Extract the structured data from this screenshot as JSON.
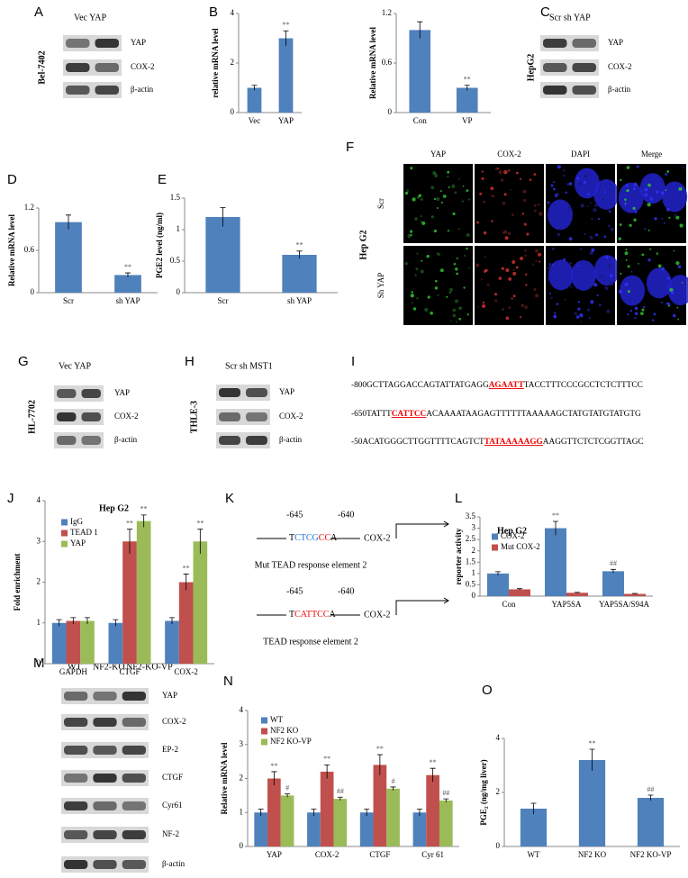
{
  "panel_letters": [
    "A",
    "B",
    "C",
    "D",
    "E",
    "F",
    "G",
    "H",
    "I",
    "J",
    "K",
    "L",
    "M",
    "N",
    "O"
  ],
  "blots": [
    {
      "header": [
        "Vec YAP"
      ],
      "labels": [
        "YAP",
        "COX-2",
        "β-actin"
      ],
      "cell_line": "Bel-7402"
    },
    {
      "header": [
        "Scr sh YAP"
      ],
      "labels": [
        "YAP",
        "COX-2",
        "β-actin"
      ],
      "cell_line": "HepG2"
    },
    {
      "header": [
        "Vec YAP"
      ],
      "labels": [
        "YAP",
        "COX-2",
        "β-actin"
      ],
      "cell_line": "HL-7702"
    },
    {
      "header": [
        "Scr sh MST1"
      ],
      "labels": [
        "YAP",
        "COX-2",
        "β-actin"
      ],
      "cell_line": "THLE-3"
    },
    {
      "header": [
        "WT",
        "NF2-KO",
        "NF2-KO-VP"
      ],
      "labels": [
        "YAP",
        "COX-2",
        "EP-2",
        "CTGF",
        "Cyr61",
        "NF-2",
        "β-actin"
      ]
    }
  ],
  "microscopy": {
    "columns": [
      "YAP",
      "COX-2",
      "DAPI",
      "Merge"
    ],
    "rows": [
      "Scr",
      "Sh YAP"
    ],
    "cell_line": "Hep G2"
  },
  "sequences": [
    [
      "-800GCTTAGGACCAGTATTATGAGG",
      "AGAATT",
      "TACCTTTCCCGCCTCTCTTTCC"
    ],
    [
      "-650TATTT",
      "CATTCC",
      "ACAAAATAAGAGTTTTTTAAAAAGCTATGTATGTATGTG"
    ],
    [
      "-50ACATGGGCTTGGTTTTCAGTCT",
      "TATAAAAAGG",
      "AAGGTTCTCTCGGTTAGC"
    ]
  ],
  "constructs": [
    {
      "positions": [
        "-645",
        "-640"
      ],
      "sequence": [
        "T",
        "CTCG",
        "CC",
        "A"
      ],
      "gene": "COX-2",
      "caption": "Mut TEAD response element 2"
    },
    {
      "positions": [
        "-645",
        "-640"
      ],
      "sequence": [
        "T",
        "CATTCC",
        "A"
      ],
      "gene": "COX-2",
      "caption": "TEAD response element 2"
    }
  ],
  "chart_data": [
    {
      "type": "bar",
      "y_label": "relative mRNA level",
      "categories": [
        "Vec",
        "YAP"
      ],
      "values": [
        1,
        3
      ],
      "errors": [
        0.1,
        0.3
      ],
      "significance": [
        null,
        "**"
      ],
      "color": "#4f81bd",
      "ylim": [
        0,
        4
      ],
      "yticks": [
        0,
        2,
        4
      ]
    },
    {
      "type": "bar",
      "y_label": "Relative mRNA level",
      "categories": [
        "Con",
        "VP"
      ],
      "values": [
        1,
        0.3
      ],
      "errors": [
        0.1,
        0.03
      ],
      "significance": [
        null,
        "**"
      ],
      "color": "#4f81bd",
      "ylim": [
        0,
        1.2
      ],
      "yticks": [
        0,
        0.6,
        1.2
      ]
    },
    {
      "type": "bar",
      "y_label": "Relative mRNA level",
      "categories": [
        "Scr",
        "sh YAP"
      ],
      "values": [
        1,
        0.25
      ],
      "errors": [
        0.1,
        0.03
      ],
      "significance": [
        null,
        "**"
      ],
      "color": "#4f81bd",
      "ylim": [
        0,
        1.2
      ],
      "yticks": [
        0,
        0.6,
        1.2
      ]
    },
    {
      "type": "bar",
      "y_label": "PGE2 level (ng/ml)",
      "categories": [
        "Scr",
        "sh YAP"
      ],
      "values": [
        1.2,
        0.6
      ],
      "errors": [
        0.15,
        0.06
      ],
      "significance": [
        null,
        "**"
      ],
      "color": "#4f81bd",
      "ylim": [
        0,
        1.5
      ],
      "yticks": [
        0,
        0.5,
        1,
        1.5
      ]
    },
    {
      "type": "bar",
      "title": "Hep G2",
      "y_label": "Fold enrichment",
      "categories": [
        "GAPDH",
        "CTGF",
        "COX-2"
      ],
      "legend": "upper left",
      "series": [
        {
          "name": "IgG",
          "color": "#4f81bd",
          "values": [
            1,
            1,
            1.05
          ],
          "errors": [
            0.08,
            0.08,
            0.08
          ],
          "significance": [
            null,
            null,
            null
          ]
        },
        {
          "name": "TEAD 1",
          "color": "#c0504d",
          "values": [
            1.05,
            3,
            2
          ],
          "errors": [
            0.08,
            0.3,
            0.2
          ],
          "significance": [
            null,
            "**",
            "**"
          ]
        },
        {
          "name": "YAP",
          "color": "#9bbb59",
          "values": [
            1.05,
            3.5,
            3
          ],
          "errors": [
            0.08,
            0.15,
            0.3
          ],
          "significance": [
            null,
            "**",
            "**"
          ]
        }
      ],
      "ylim": [
        0,
        4
      ],
      "yticks": [
        0,
        1,
        2,
        3,
        4
      ]
    },
    {
      "type": "bar",
      "title": "Hep G2",
      "y_label": "reporter activity",
      "categories": [
        "Con",
        "YAP5SA",
        "YAP5SA/S94A"
      ],
      "legend": "upper left",
      "series": [
        {
          "name": "COX-2",
          "color": "#4f81bd",
          "values": [
            1,
            3,
            1.1
          ],
          "errors": [
            0.08,
            0.3,
            0.08
          ],
          "significance": [
            null,
            "**",
            "##"
          ]
        },
        {
          "name": "Mut COX-2",
          "color": "#c0504d",
          "values": [
            0.3,
            0.15,
            0.1
          ],
          "errors": [
            0.03,
            0.02,
            0.02
          ],
          "significance": [
            null,
            null,
            null
          ]
        }
      ],
      "ylim": [
        0,
        3.5
      ],
      "yticks": [
        0,
        0.5,
        1,
        1.5,
        2,
        2.5,
        3,
        3.5
      ]
    },
    {
      "type": "bar",
      "y_label": "Relative mRNA level",
      "categories": [
        "YAP",
        "COX-2",
        "CTGF",
        "Cyr 61"
      ],
      "legend": "upper left",
      "series": [
        {
          "name": "WT",
          "color": "#4f81bd",
          "values": [
            1,
            1,
            1,
            1
          ],
          "errors": [
            0.1,
            0.1,
            0.1,
            0.1
          ],
          "significance": [
            null,
            null,
            null,
            null
          ]
        },
        {
          "name": "NF2 KO",
          "color": "#c0504d",
          "values": [
            2,
            2.2,
            2.4,
            2.1
          ],
          "errors": [
            0.2,
            0.2,
            0.3,
            0.2
          ],
          "significance": [
            "**",
            "**",
            "**",
            "**"
          ]
        },
        {
          "name": "NF2 KO-VP",
          "color": "#9bbb59",
          "values": [
            1.5,
            1.4,
            1.7,
            1.35
          ],
          "errors": [
            0.05,
            0.05,
            0.05,
            0.05
          ],
          "significance": [
            "#",
            "##",
            "#",
            "##"
          ]
        }
      ],
      "ylim": [
        0,
        4
      ],
      "yticks": [
        0,
        1,
        2,
        3,
        4
      ]
    },
    {
      "type": "bar",
      "y_label": "PGE₂ (ng/mg liver)",
      "categories": [
        "WT",
        "NF2 KO",
        "NF2 KO-VP"
      ],
      "values": [
        1.4,
        3.2,
        1.8
      ],
      "errors": [
        0.2,
        0.4,
        0.1
      ],
      "significance": [
        null,
        "**",
        "##"
      ],
      "color": "#4f81bd",
      "ylim": [
        0,
        4
      ],
      "yticks": [
        0,
        2,
        4
      ]
    }
  ]
}
